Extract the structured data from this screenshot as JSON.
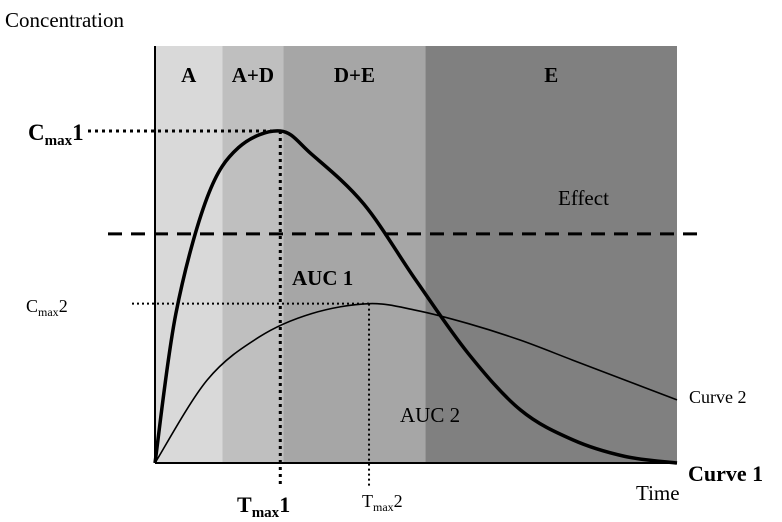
{
  "chart_data": {
    "type": "line",
    "ylabel": "Concentration",
    "xlabel": "Time",
    "phases": [
      {
        "label": "A",
        "x_start": 0.0,
        "x_end": 0.129,
        "color": "#d9d9d9"
      },
      {
        "label": "A+D",
        "x_start": 0.129,
        "x_end": 0.246,
        "color": "#bfbfbf"
      },
      {
        "label": "D+E",
        "x_start": 0.246,
        "x_end": 0.518,
        "color": "#a6a6a6"
      },
      {
        "label": "E",
        "x_start": 0.518,
        "x_end": 1.0,
        "color": "#808080"
      }
    ],
    "series": [
      {
        "name": "Curve 1",
        "points": [
          [
            0,
            0
          ],
          [
            0.04,
            0.45
          ],
          [
            0.1,
            0.8
          ],
          [
            0.16,
            0.95
          ],
          [
            0.24,
            1.0
          ],
          [
            0.3,
            0.93
          ],
          [
            0.4,
            0.78
          ],
          [
            0.5,
            0.55
          ],
          [
            0.6,
            0.33
          ],
          [
            0.7,
            0.16
          ],
          [
            0.8,
            0.07
          ],
          [
            0.9,
            0.02
          ],
          [
            1.0,
            0.0
          ]
        ]
      },
      {
        "name": "Curve 2",
        "points": [
          [
            0,
            0
          ],
          [
            0.1,
            0.25
          ],
          [
            0.2,
            0.38
          ],
          [
            0.3,
            0.45
          ],
          [
            0.41,
            0.48
          ],
          [
            0.5,
            0.46
          ],
          [
            0.6,
            0.42
          ],
          [
            0.7,
            0.37
          ],
          [
            0.8,
            0.31
          ],
          [
            0.9,
            0.25
          ],
          [
            1.0,
            0.19
          ]
        ]
      }
    ],
    "effect_threshold": 0.69,
    "cmax1": {
      "label_main": "C",
      "label_sub": "max",
      "label_suffix": "1",
      "x": 0.24,
      "y": 1.0
    },
    "cmax2": {
      "label_main": "C",
      "label_sub": "max",
      "label_suffix": "2",
      "x": 0.41,
      "y": 0.48
    },
    "tmax1": {
      "label_main": "T",
      "label_sub": "max",
      "label_suffix": "1"
    },
    "tmax2": {
      "label_main": "T",
      "label_sub": "max",
      "label_suffix": "2"
    },
    "annotations": {
      "effect": "Effect",
      "auc1": "AUC 1",
      "auc2": "AUC 2",
      "curve1": "Curve 1",
      "curve2": "Curve 2"
    }
  }
}
